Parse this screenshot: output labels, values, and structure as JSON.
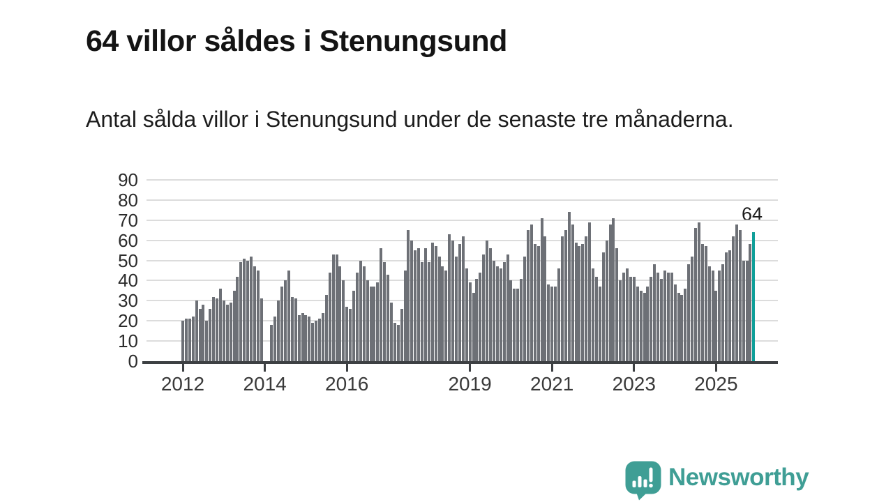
{
  "header": {
    "title": "64 villor såldes i Stenungsund",
    "subtitle": "Antal sålda villor i Stenungsund under de senaste tre månaderna."
  },
  "chart_data": {
    "type": "bar",
    "title": "64 villor såldes i Stenungsund",
    "xlabel": "",
    "ylabel": "",
    "ylim": [
      0,
      90
    ],
    "yticks": [
      0,
      10,
      20,
      30,
      40,
      50,
      60,
      70,
      80,
      90
    ],
    "grid": true,
    "legend": "none",
    "x_unit": "month",
    "start_month": "2012-01",
    "end_month": "2025-12",
    "xticks": [
      {
        "label": "2012",
        "month_index": 0
      },
      {
        "label": "2014",
        "month_index": 24
      },
      {
        "label": "2016",
        "month_index": 48
      },
      {
        "label": "2019",
        "month_index": 84
      },
      {
        "label": "2021",
        "month_index": 108
      },
      {
        "label": "2023",
        "month_index": 132
      },
      {
        "label": "2025",
        "month_index": 156
      }
    ],
    "values": [
      20,
      21,
      21,
      22,
      30,
      26,
      28,
      20,
      26,
      32,
      31,
      36,
      30,
      28,
      29,
      35,
      42,
      49,
      51,
      50,
      52,
      47,
      45,
      31,
      0,
      0,
      18,
      22,
      30,
      37,
      40,
      45,
      32,
      31,
      23,
      24,
      23,
      22,
      19,
      20,
      21,
      24,
      33,
      44,
      53,
      53,
      47,
      40,
      27,
      26,
      35,
      44,
      50,
      47,
      40,
      37,
      37,
      39,
      56,
      49,
      43,
      29,
      19,
      18,
      26,
      45,
      65,
      60,
      55,
      56,
      49,
      56,
      49,
      59,
      57,
      52,
      47,
      45,
      63,
      60,
      52,
      58,
      62,
      46,
      39,
      34,
      41,
      44,
      53,
      60,
      56,
      50,
      47,
      46,
      49,
      53,
      40,
      36,
      36,
      41,
      52,
      65,
      68,
      58,
      57,
      71,
      62,
      38,
      37,
      37,
      46,
      62,
      65,
      74,
      68,
      59,
      57,
      58,
      62,
      69,
      46,
      42,
      37,
      54,
      60,
      68,
      71,
      56,
      40,
      44,
      46,
      42,
      42,
      37,
      35,
      34,
      37,
      42,
      48,
      44,
      41,
      45,
      44,
      44,
      38,
      34,
      33,
      36,
      48,
      52,
      66,
      69,
      58,
      57,
      47,
      45,
      35,
      45,
      48,
      54,
      55,
      62,
      68,
      65,
      50,
      50,
      58,
      64
    ],
    "bar_color": "#6d7076",
    "highlight": {
      "index": 167,
      "label": "64",
      "color": "#0f9f99"
    }
  },
  "branding": {
    "name": "Newsworthy",
    "logo_icon": "newsworthy-speech-bubble-chart-icon",
    "color": "#3f9e95"
  }
}
